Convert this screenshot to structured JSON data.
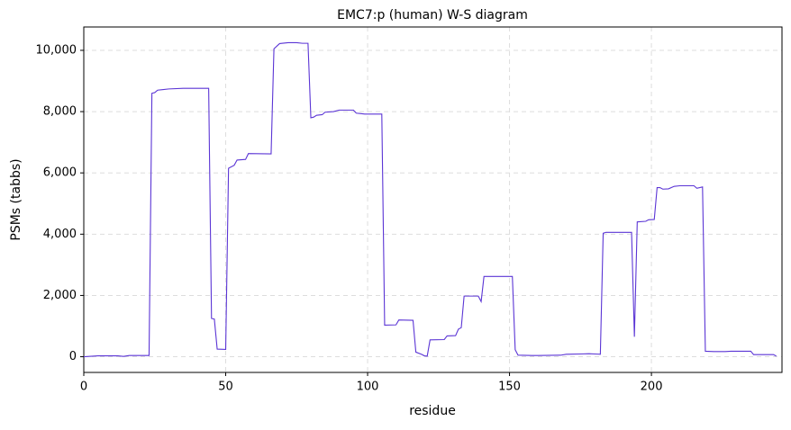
{
  "chart_data": {
    "type": "line",
    "title": "EMC7:p (human) W-S diagram",
    "x_label": "residue",
    "y_label": "PSMs (tabbs)",
    "x": [
      0,
      5,
      12,
      14,
      16,
      23,
      24,
      25,
      26,
      28,
      30,
      35,
      44,
      45,
      46,
      47,
      50,
      51,
      53,
      54,
      57,
      58,
      66,
      67,
      69,
      72,
      75,
      77,
      79,
      80,
      81,
      82,
      84,
      85,
      88,
      90,
      95,
      96,
      98,
      99,
      105,
      106,
      110,
      111,
      116,
      117,
      119,
      120,
      121,
      122,
      127,
      128,
      131,
      132,
      133,
      134,
      139,
      140,
      141,
      151,
      152,
      153,
      158,
      160,
      168,
      170,
      175,
      178,
      180,
      182,
      183,
      184,
      193,
      194,
      195,
      198,
      199,
      201,
      202,
      203,
      204,
      206,
      208,
      210,
      215,
      216,
      218,
      219,
      222,
      226,
      228,
      235,
      236,
      243,
      244
    ],
    "series": [
      {
        "name": "PSMs",
        "color": "#5b35d5",
        "values": [
          0,
          30,
          30,
          10,
          40,
          40,
          8600,
          8620,
          8700,
          8720,
          8740,
          8760,
          8760,
          1250,
          1230,
          250,
          240,
          6150,
          6250,
          6420,
          6440,
          6630,
          6620,
          10050,
          10220,
          10250,
          10250,
          10230,
          10230,
          7800,
          7820,
          7880,
          7900,
          7980,
          8000,
          8050,
          8050,
          7950,
          7930,
          7920,
          7920,
          1030,
          1040,
          1200,
          1190,
          150,
          80,
          30,
          20,
          550,
          560,
          680,
          690,
          900,
          950,
          1980,
          1980,
          1800,
          2620,
          2620,
          230,
          50,
          40,
          40,
          50,
          80,
          90,
          100,
          90,
          80,
          4030,
          4060,
          4060,
          650,
          4400,
          4420,
          4470,
          4480,
          5520,
          5520,
          5470,
          5480,
          5560,
          5580,
          5580,
          5500,
          5540,
          180,
          170,
          170,
          180,
          180,
          70,
          70,
          20
        ]
      }
    ],
    "xlim": [
      0,
      246
    ],
    "ylim": [
      -512,
      10762
    ],
    "xticks": [
      0,
      50,
      100,
      150,
      200
    ],
    "yticks": [
      0,
      {
        "value": 2000,
        "label": "2,000"
      },
      {
        "value": 4000,
        "label": "4,000"
      },
      {
        "value": 6000,
        "label": "6,000"
      },
      {
        "value": 8000,
        "label": "8,000"
      },
      {
        "value": 10000,
        "label": "10,000"
      }
    ],
    "grid": true
  }
}
